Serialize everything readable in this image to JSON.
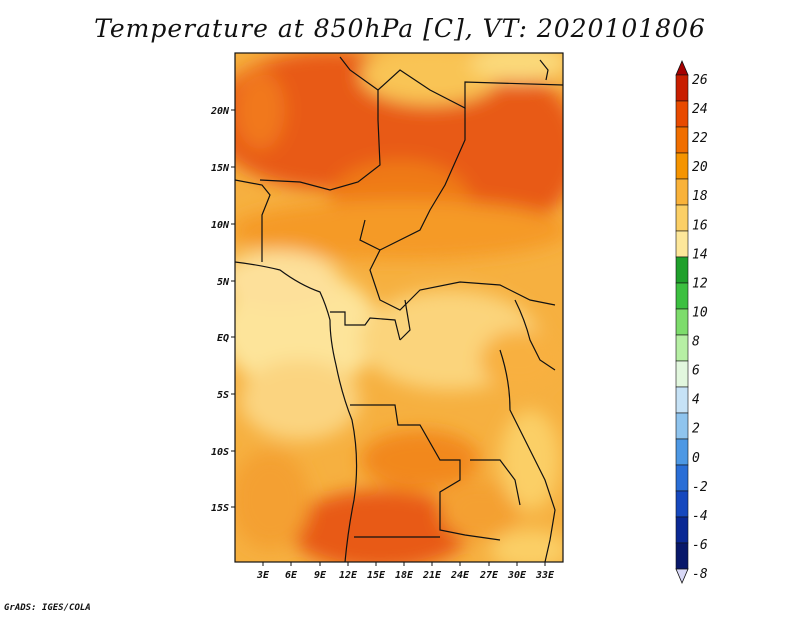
{
  "title": "Temperature at 850hPa [C], VT: 2020101806",
  "footer": "GrADS: IGES/COLA",
  "map": {
    "lat_labels": [
      "20N",
      "15N",
      "10N",
      "5N",
      "EQ",
      "5S",
      "10S",
      "15S"
    ],
    "lon_labels": [
      "3E",
      "6E",
      "9E",
      "12E",
      "15E",
      "18E",
      "21E",
      "24E",
      "27E",
      "30E",
      "33E"
    ]
  },
  "colorbar": {
    "levels": [
      "26",
      "24",
      "22",
      "20",
      "18",
      "16",
      "14",
      "12",
      "10",
      "8",
      "6",
      "4",
      "2",
      "0",
      "-2",
      "-4",
      "-6",
      "-8"
    ],
    "colors": [
      "#a50000",
      "#c81e00",
      "#e84a00",
      "#f06e00",
      "#f59400",
      "#f9b23a",
      "#fbcf66",
      "#fde79a",
      "#1fa02b",
      "#3cc040",
      "#7ddc6c",
      "#b6efa4",
      "#e2f7de",
      "#c6e2f6",
      "#8fc4ee",
      "#4d98e4",
      "#2a6ed6",
      "#1648be",
      "#0a2894",
      "#08186a",
      "#d8d8f6"
    ]
  }
}
